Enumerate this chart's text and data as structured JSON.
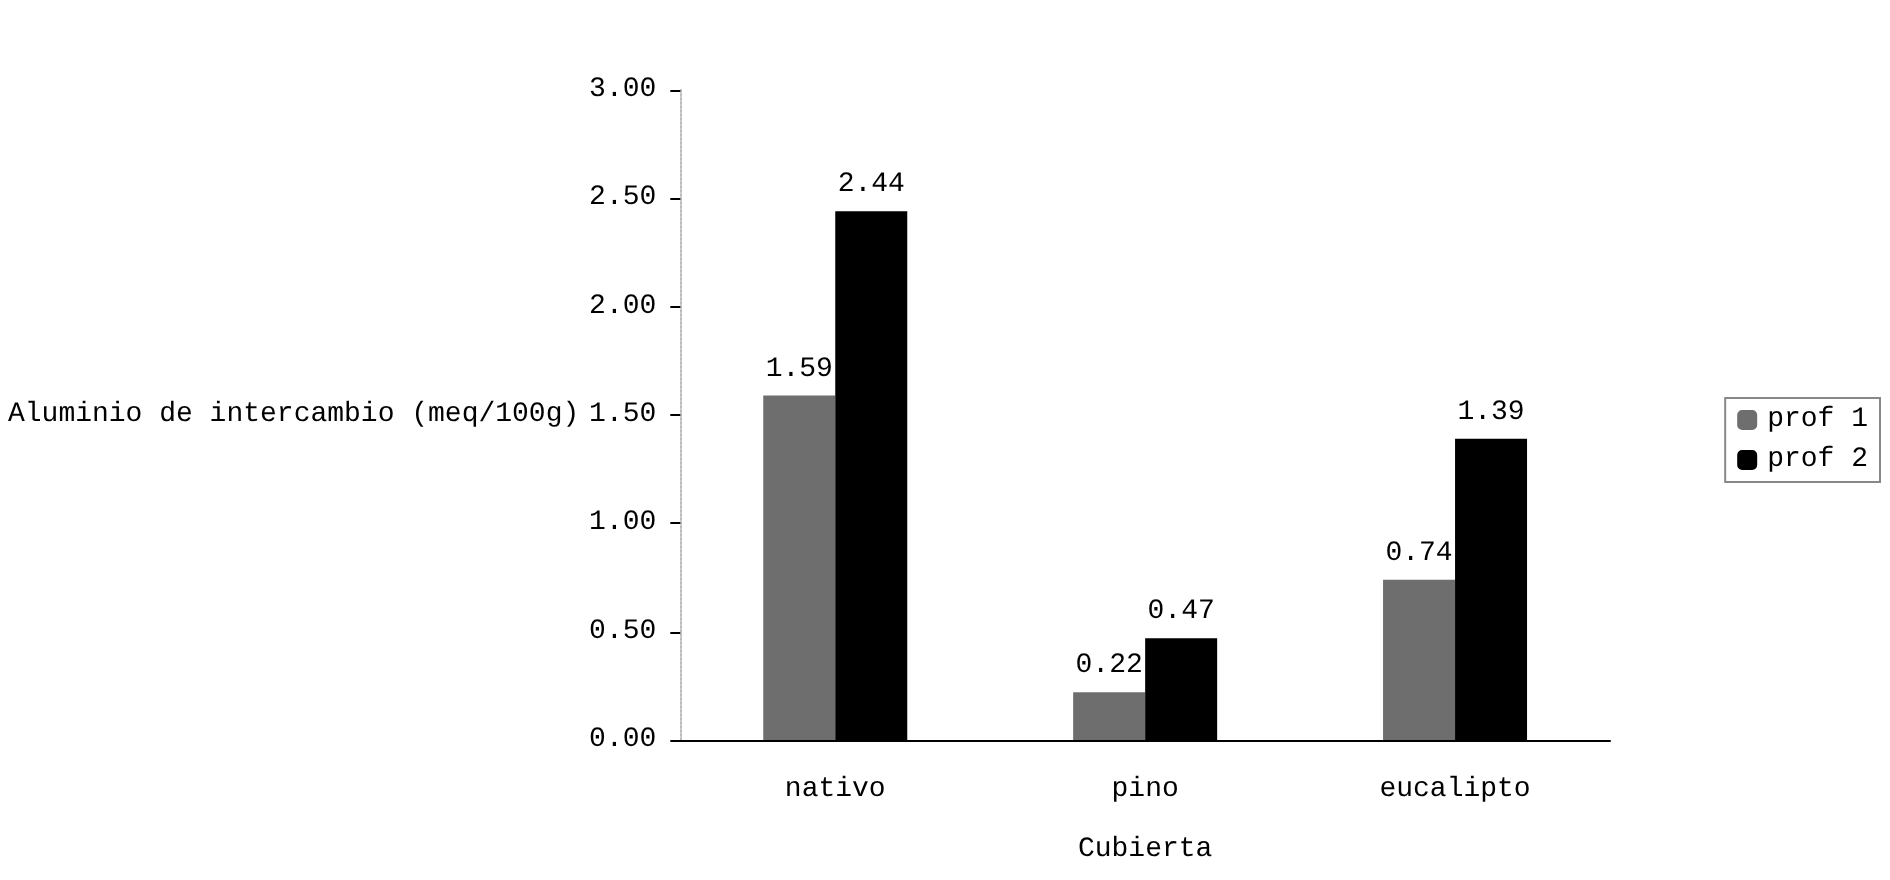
{
  "chart_data": {
    "type": "bar",
    "xlabel": "Cubierta",
    "ylabel": "Aluminio de intercambio (meq/100g)",
    "categories": [
      "nativo",
      "pino",
      "eucalipto"
    ],
    "series": [
      {
        "name": "prof 1",
        "color": "#6e6e6e",
        "values": [
          1.59,
          0.22,
          0.74
        ]
      },
      {
        "name": "prof 2",
        "color": "#000000",
        "values": [
          2.44,
          0.47,
          1.39
        ]
      }
    ],
    "ylim": [
      0,
      3
    ],
    "yticks": [
      {
        "value": 0,
        "label": "0.00"
      },
      {
        "value": 0.5,
        "label": "0.50"
      },
      {
        "value": 1,
        "label": "1.00"
      },
      {
        "value": 1.5,
        "label": "1.50"
      },
      {
        "value": 2,
        "label": "2.00"
      },
      {
        "value": 2.5,
        "label": "2.50"
      },
      {
        "value": 3,
        "label": "3.00"
      }
    ],
    "data_labels": true,
    "grid": false,
    "legend": "right"
  }
}
